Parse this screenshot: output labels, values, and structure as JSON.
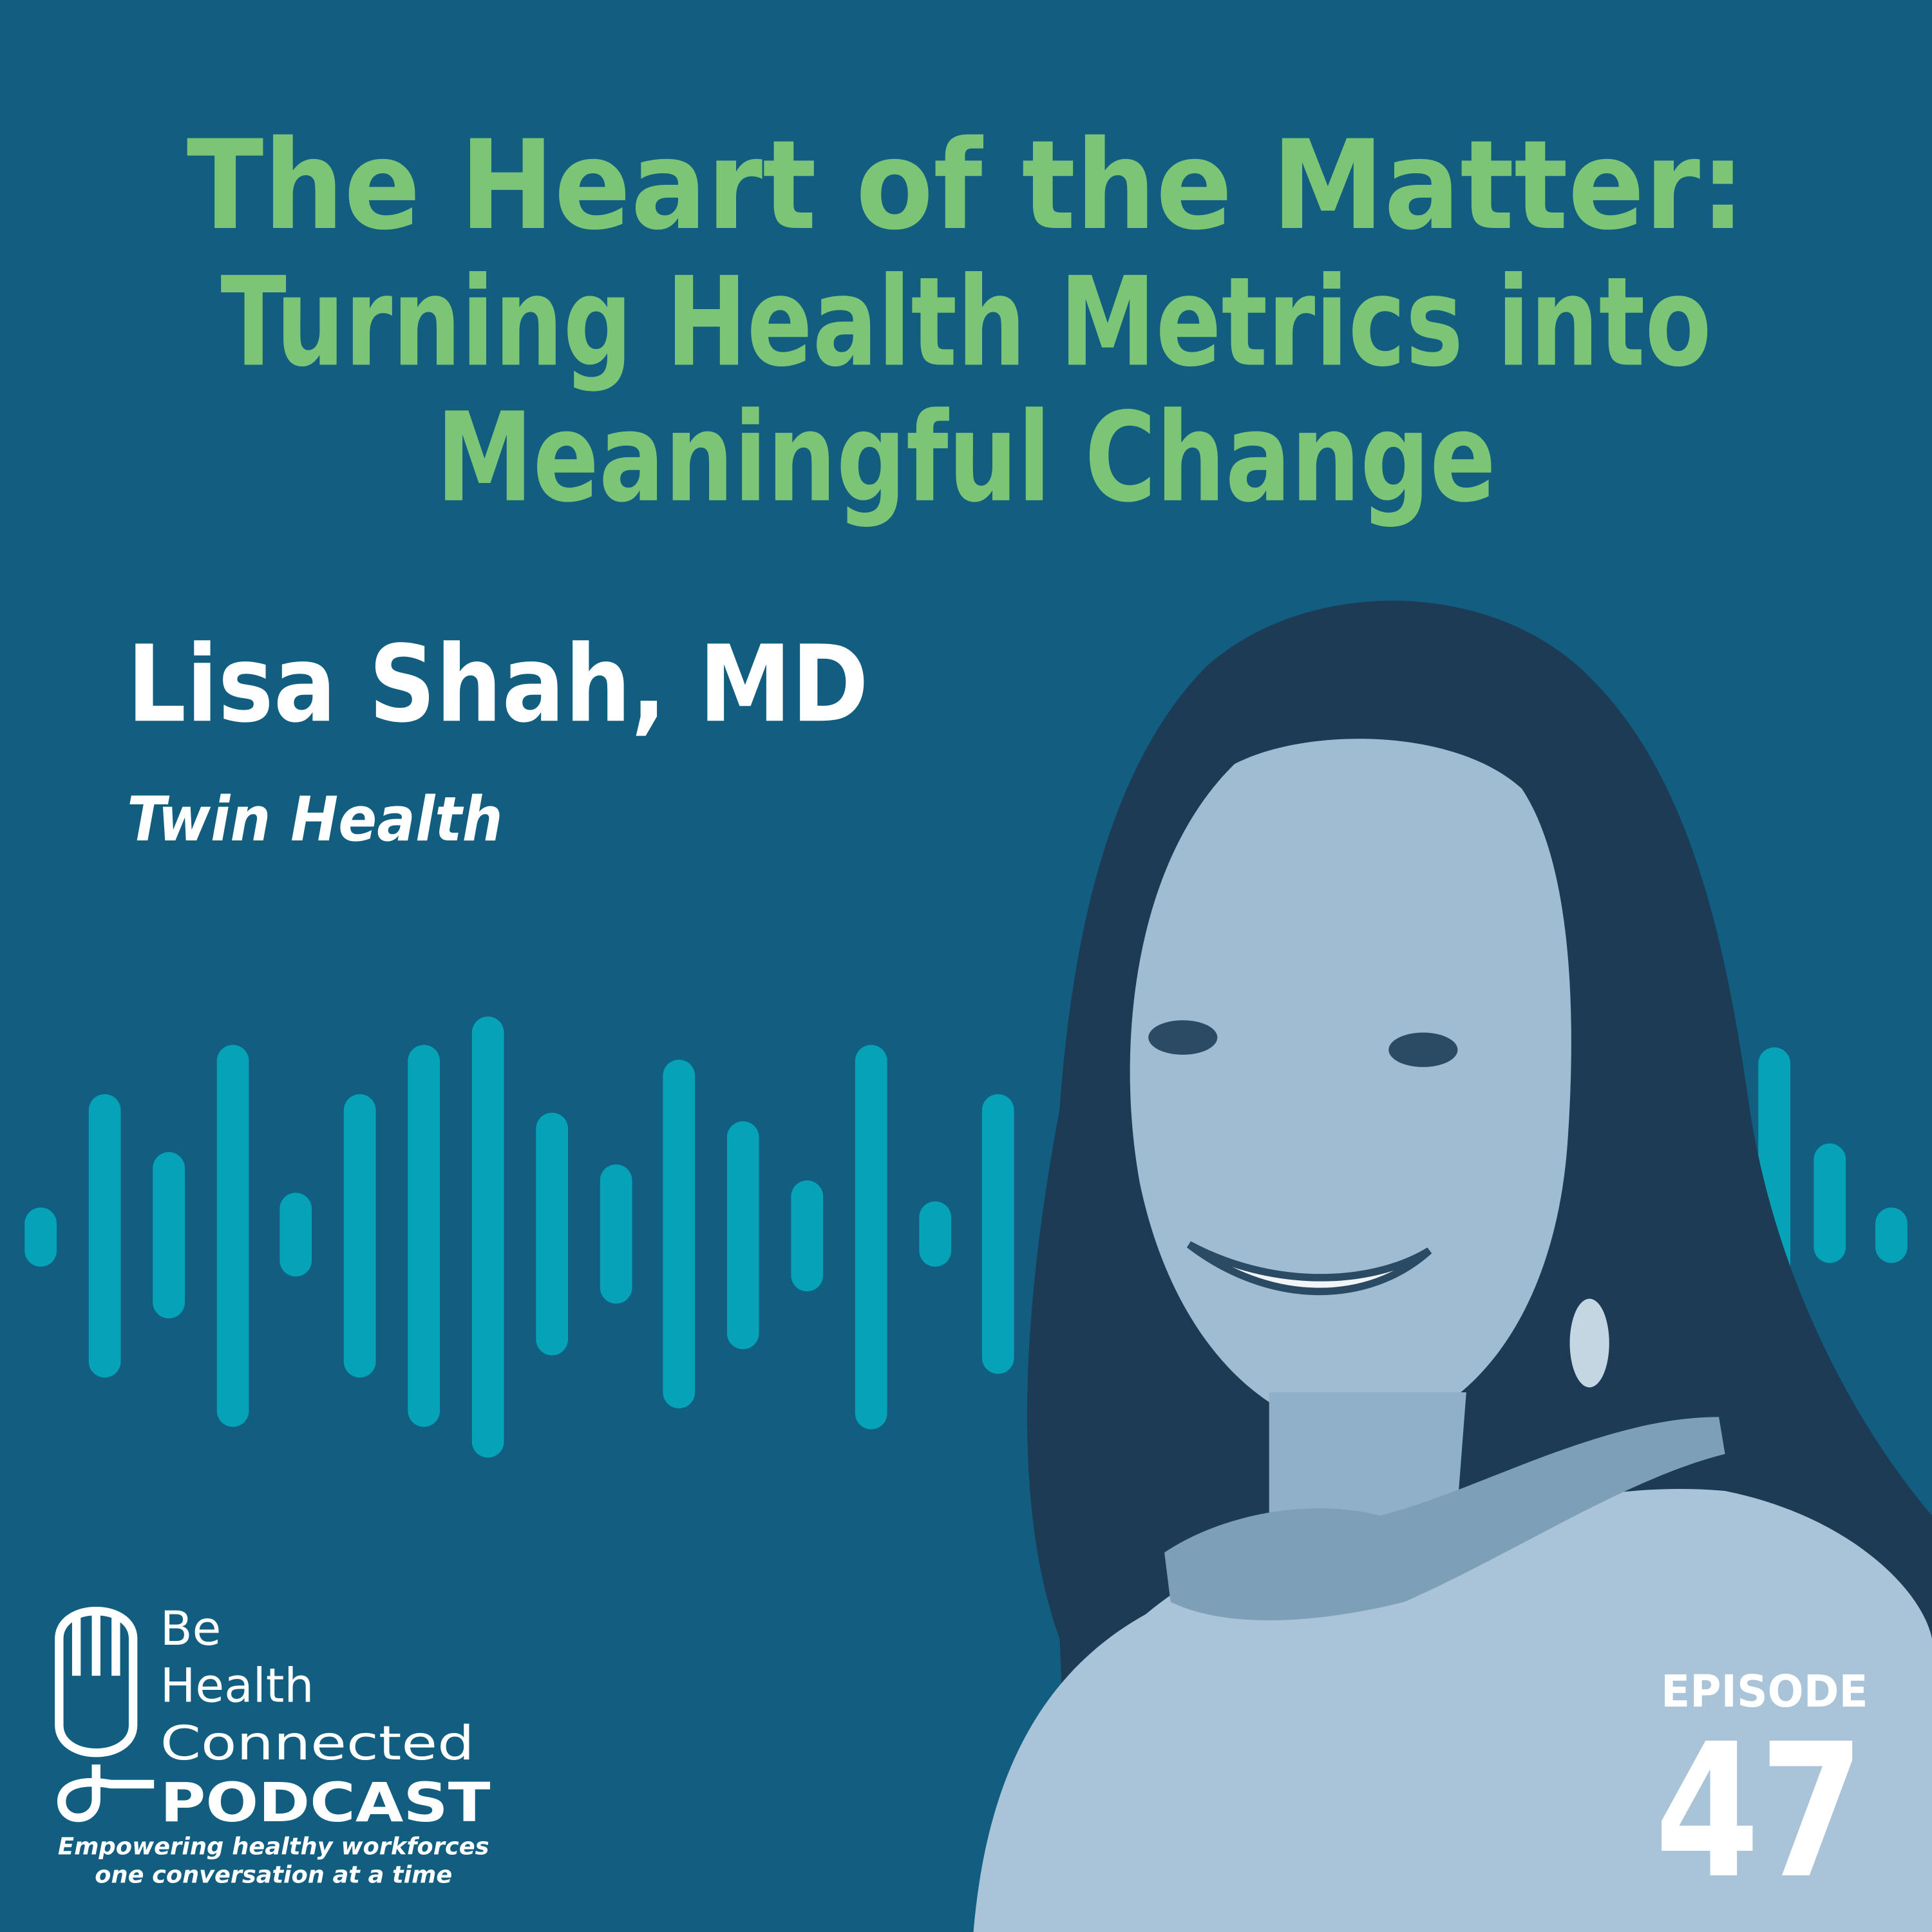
{
  "title": {
    "lines": [
      "The Heart of the Matter:",
      "Turning Health Metrics into",
      "Meaningful Change"
    ]
  },
  "guest": {
    "name": "Lisa Shah, MD",
    "organization": "Twin Health"
  },
  "logo": {
    "lines": [
      "Be",
      "Health",
      "Connected",
      "PODCAST"
    ],
    "tagline": [
      "Empowering healthy workforces",
      "one conversation at a time"
    ]
  },
  "episode": {
    "label": "EPISODE",
    "number": 47
  }
}
